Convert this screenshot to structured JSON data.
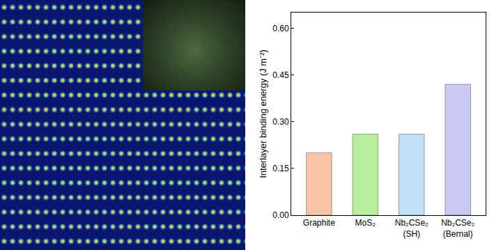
{
  "chart_data": {
    "type": "bar",
    "categories": [
      "Graphite",
      "MoS₂",
      "Nb₂CSe₂ (SH)",
      "Nb₂CSe₂ (Bernal)"
    ],
    "values": [
      0.2,
      0.26,
      0.26,
      0.42
    ],
    "colors": [
      "#f7c4a8",
      "#b9ef9c",
      "#bfe1f7",
      "#c9c9f2"
    ],
    "y_label": "Interlayer binding energy (J m⁻²)",
    "ylim": [
      0,
      0.65
    ],
    "yticks": [
      {
        "value": 0,
        "label": "0.00"
      },
      {
        "value": 0.15,
        "label": "0.15"
      },
      {
        "value": 0.3,
        "label": "0.30"
      },
      {
        "value": 0.45,
        "label": "0.45"
      },
      {
        "value": 0.6,
        "label": "0.60"
      }
    ],
    "grid": false
  }
}
